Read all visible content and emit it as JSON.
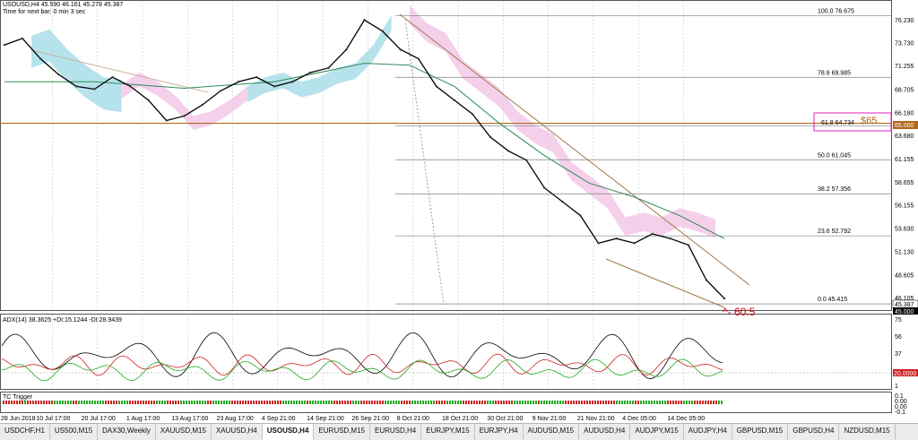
{
  "header": {
    "symbol_line": "USOUSD,H4  45.590 46.161 45.278 45.387",
    "timer_line": "Time for next bar: 0 min 3 sec"
  },
  "chart_data": {
    "type": "line",
    "symbol": "USOUSD",
    "timeframe": "H4",
    "ohlc": {
      "open": 45.59,
      "high": 46.161,
      "low": 45.278,
      "close": 45.387
    },
    "ylim": [
      45.0,
      77.5
    ],
    "y_ticks": [
      76.23,
      73.73,
      71.255,
      68.705,
      66.18,
      63.68,
      61.155,
      58.655,
      56.155,
      53.63,
      51.13,
      48.605,
      46.105
    ],
    "y_tick_labels": [
      "76.230",
      "73.730",
      "71.255",
      "68.705",
      "66.180",
      "63.680",
      "61.155",
      "58.655",
      "56.155",
      "53.630",
      "51.130",
      "48.605",
      "46.105"
    ],
    "x_tick_labels": [
      "28 Jun 2018",
      "10 Jul 17:00",
      "20 Jul 17:00",
      "1 Aug 17:00",
      "13 Aug 17:00",
      "23 Aug 17:00",
      "4 Sep 21:00",
      "14 Sep 21:00",
      "26 Sep 21:00",
      "8 Oct 21:00",
      "18 Oct 21:00",
      "30 Oct 21:00",
      "9 Nov 21:00",
      "21 Nov 21:00",
      "4 Dec 05:00",
      "14 Dec 05:00"
    ],
    "price_series": {
      "x": [
        0,
        2,
        4,
        6,
        8,
        10,
        12,
        14,
        16,
        18,
        20,
        22,
        24,
        26,
        28,
        30,
        32,
        34,
        36,
        38,
        40,
        42,
        44,
        46,
        48,
        50,
        52,
        54,
        56,
        58,
        60,
        62,
        64,
        66,
        68,
        70,
        72,
        74,
        76,
        78,
        80
      ],
      "y": [
        73.5,
        74.2,
        72.0,
        70.3,
        69.0,
        68.7,
        70.0,
        69.0,
        67.5,
        65.3,
        65.8,
        67.0,
        68.5,
        69.5,
        70.0,
        69.0,
        69.5,
        70.5,
        71.0,
        73.0,
        76.2,
        75.0,
        73.0,
        72.0,
        69.0,
        67.5,
        66.0,
        63.5,
        62.0,
        61.0,
        58.0,
        56.5,
        55.0,
        52.0,
        52.5,
        52.0,
        53.0,
        52.5,
        51.8,
        48.0,
        46.0
      ]
    },
    "moving_average_series": {
      "x": [
        0,
        10,
        20,
        30,
        40,
        45,
        50,
        55,
        60,
        65,
        70,
        75,
        80
      ],
      "y": [
        69.5,
        69.5,
        68.8,
        69.5,
        71.5,
        71.3,
        69.0,
        65.0,
        61.5,
        58.5,
        57.0,
        55.0,
        52.5
      ]
    },
    "fibonacci": [
      {
        "level": "100.0",
        "price": 76.675
      },
      {
        "level": "78.6",
        "price": 69.985
      },
      {
        "level": "61.8",
        "price": 64.734
      },
      {
        "level": "50.0",
        "price": 61.045
      },
      {
        "level": "38.2",
        "price": 57.356
      },
      {
        "level": "23.6",
        "price": 52.792
      },
      {
        "level": "0.0",
        "price": 45.415
      }
    ],
    "horizontal_line": {
      "price": 65.0,
      "label": "65.000",
      "color": "#b06a1c"
    },
    "annotations": {
      "target_box_label": "$65",
      "fib_box_label": "61.8   64.734",
      "bottom_label": "^- 60:5"
    },
    "current_price_label": "45.387",
    "current_price_label_2": "45.000",
    "indicators": {
      "adx": {
        "title": "ADX(14) 38.3625 +DI:15.1244 -DI:28.9439",
        "y_ticks": [
          75,
          56,
          37,
          20,
          1
        ],
        "y_tick_labels": [
          "75",
          "56",
          "37",
          "20.0000",
          "1"
        ],
        "level_label": "20.0000"
      },
      "tc_trigger": {
        "title": "TC Trigger",
        "y_tick_labels": [
          "0.1",
          "0.00",
          "0.00",
          "-0.1"
        ]
      }
    },
    "grid": true
  },
  "tabs": [
    {
      "label": "USDCHF,H1"
    },
    {
      "label": "US500,M15"
    },
    {
      "label": "DAX30,Weekly"
    },
    {
      "label": "XAUUSD,M15"
    },
    {
      "label": "XAUUSD,H4"
    },
    {
      "label": "USOUSD,H4",
      "active": true
    },
    {
      "label": "EURUSD,M15"
    },
    {
      "label": "EURUSD,H4"
    },
    {
      "label": "EURJPY,M15"
    },
    {
      "label": "EURJPY,H4"
    },
    {
      "label": "AUDUSD,M15"
    },
    {
      "label": "AUDUSD,H4"
    },
    {
      "label": "AUDJPY,M15"
    },
    {
      "label": "AUDJPY,H4"
    },
    {
      "label": "GBPUSD,M15"
    },
    {
      "label": "GBPUSD,H4"
    },
    {
      "label": "NZDUSD,M15"
    }
  ],
  "colors": {
    "price": "#000000",
    "ma": "#2e8b57",
    "cloud_green": "#9ed8e6",
    "cloud_pink": "#f1c0e4",
    "trendline": "#a0784a",
    "fib_line": "#7f7f7f",
    "target_box": "#e020c0",
    "adx": "#000000",
    "plus_di": "#22aa22",
    "minus_di": "#cc2222",
    "bottom_label": "#cc0000"
  }
}
